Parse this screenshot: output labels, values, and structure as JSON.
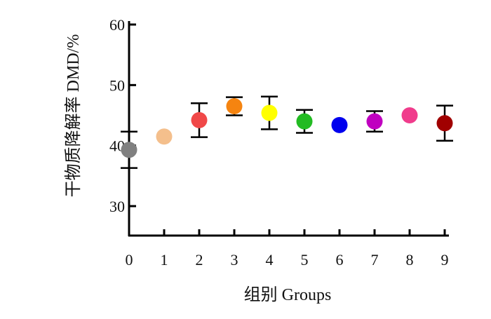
{
  "chart_data": {
    "type": "scatter",
    "xlabel": "组别  Groups",
    "ylabel": "干物质降解率  DMD/%",
    "ylim": [
      25,
      60
    ],
    "xlim": [
      0,
      9
    ],
    "yticks": [
      "30",
      "40",
      "50",
      "60"
    ],
    "xticks": [
      "0",
      "1",
      "2",
      "3",
      "4",
      "5",
      "6",
      "7",
      "8",
      "9"
    ],
    "grid": false,
    "legend": "none",
    "points": [
      {
        "x": 0,
        "y": 39.3,
        "err": 3.0,
        "color": "#808080"
      },
      {
        "x": 1,
        "y": 41.5,
        "err": 0,
        "color": "#F4BF8C"
      },
      {
        "x": 2,
        "y": 44.2,
        "err": 2.8,
        "color": "#F04848"
      },
      {
        "x": 3,
        "y": 46.5,
        "err": 1.5,
        "color": "#F58410"
      },
      {
        "x": 4,
        "y": 45.4,
        "err": 2.7,
        "color": "#FFFF00"
      },
      {
        "x": 5,
        "y": 44.0,
        "err": 1.9,
        "color": "#22BB22"
      },
      {
        "x": 6,
        "y": 43.4,
        "err": 0,
        "color": "#0000EE"
      },
      {
        "x": 7,
        "y": 44.0,
        "err": 1.7,
        "color": "#C000C0"
      },
      {
        "x": 8,
        "y": 45.0,
        "err": 0,
        "color": "#F03C8C"
      },
      {
        "x": 9,
        "y": 43.7,
        "err": 2.9,
        "color": "#A00000"
      }
    ]
  }
}
